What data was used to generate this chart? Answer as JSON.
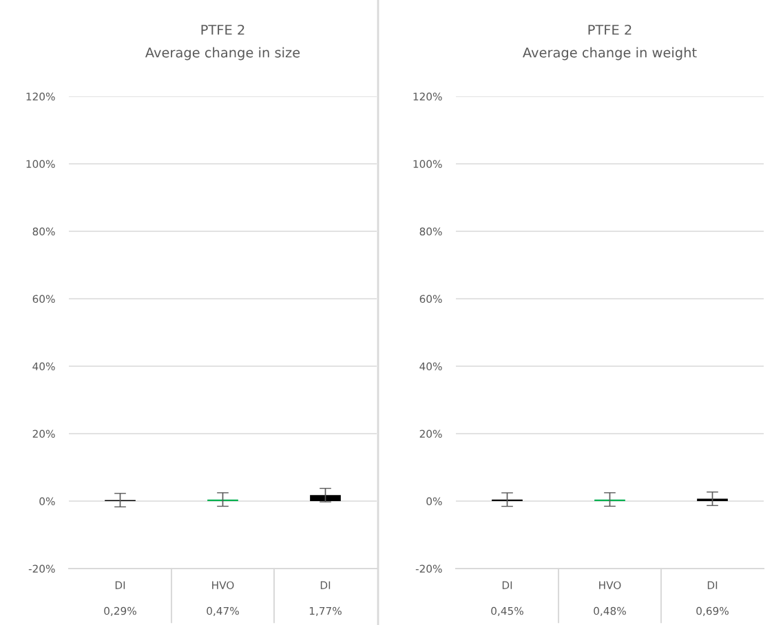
{
  "chart_data": [
    {
      "type": "bar",
      "title": "PTFE 2",
      "subtitle": "Average change in size",
      "categories": [
        "DI",
        "HVO",
        "DI"
      ],
      "values": [
        0.29,
        0.47,
        1.77
      ],
      "colors": [
        "#000000",
        "#00b050",
        "#000000"
      ],
      "errors": [
        2,
        2,
        2
      ],
      "value_labels": [
        "0,29%",
        "0,47%",
        "1,77%"
      ],
      "ylim": [
        -20,
        120
      ],
      "yticks": [
        {
          "value": -20,
          "label": "-20%"
        },
        {
          "value": 0,
          "label": "0%"
        },
        {
          "value": 20,
          "label": "20%"
        },
        {
          "value": 40,
          "label": "40%"
        },
        {
          "value": 60,
          "label": "60%"
        },
        {
          "value": 80,
          "label": "80%"
        },
        {
          "value": 100,
          "label": "100%"
        },
        {
          "value": 120,
          "label": "120%"
        }
      ],
      "grid": "y"
    },
    {
      "type": "bar",
      "title": "PTFE 2",
      "subtitle": "Average change in weight",
      "categories": [
        "DI",
        "HVO",
        "DI"
      ],
      "values": [
        0.45,
        0.48,
        0.69
      ],
      "colors": [
        "#000000",
        "#00b050",
        "#000000"
      ],
      "errors": [
        2,
        2,
        2
      ],
      "value_labels": [
        "0,45%",
        "0,48%",
        "0,69%"
      ],
      "ylim": [
        -20,
        120
      ],
      "yticks": [
        {
          "value": -20,
          "label": "-20%"
        },
        {
          "value": 0,
          "label": "0%"
        },
        {
          "value": 20,
          "label": "20%"
        },
        {
          "value": 40,
          "label": "40%"
        },
        {
          "value": 60,
          "label": "60%"
        },
        {
          "value": 80,
          "label": "80%"
        },
        {
          "value": 100,
          "label": "100%"
        },
        {
          "value": 120,
          "label": "120%"
        }
      ],
      "grid": "y"
    }
  ]
}
